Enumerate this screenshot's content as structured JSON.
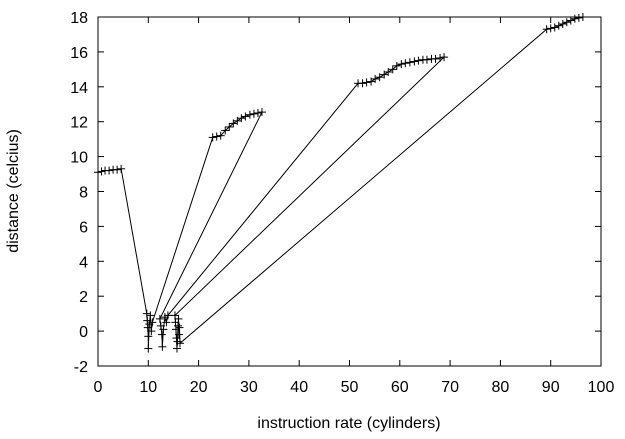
{
  "chart_data": {
    "type": "line",
    "title": "",
    "xlabel": "instruction rate (cylinders)",
    "ylabel": "distance (celcius)",
    "xlim": [
      0,
      100
    ],
    "ylim": [
      -2,
      18
    ],
    "x_ticks": [
      0,
      10,
      20,
      30,
      40,
      50,
      60,
      70,
      80,
      90,
      100
    ],
    "y_ticks": [
      -2,
      0,
      2,
      4,
      6,
      8,
      10,
      12,
      14,
      16,
      18
    ],
    "grid": false,
    "legend": "none",
    "marker": "plus",
    "color": "#000000",
    "series": [
      {
        "points": [
          [
            0.0,
            9.1
          ],
          [
            0.7,
            9.15
          ],
          [
            1.4,
            9.2
          ],
          [
            2.2,
            9.2
          ],
          [
            3.0,
            9.25
          ],
          [
            3.8,
            9.25
          ],
          [
            4.6,
            9.3
          ],
          [
            9.7,
            1.0
          ],
          [
            9.8,
            0.6
          ],
          [
            9.9,
            0.2
          ],
          [
            10.0,
            -0.3
          ],
          [
            10.0,
            -1.0
          ],
          [
            10.2,
            0.4
          ],
          [
            10.4,
            0.9
          ],
          [
            10.6,
            0.0
          ],
          [
            10.8,
            0.5
          ],
          [
            22.8,
            11.1
          ],
          [
            23.6,
            11.15
          ],
          [
            24.4,
            11.2
          ],
          [
            25.3,
            11.5
          ],
          [
            26.1,
            11.7
          ],
          [
            26.9,
            11.9
          ],
          [
            27.7,
            12.05
          ],
          [
            28.5,
            12.2
          ],
          [
            29.3,
            12.3
          ],
          [
            30.2,
            12.4
          ],
          [
            31.0,
            12.45
          ],
          [
            31.8,
            12.5
          ],
          [
            32.6,
            12.55
          ],
          [
            12.3,
            0.7
          ],
          [
            12.5,
            0.3
          ],
          [
            12.7,
            -0.2
          ],
          [
            12.8,
            -0.9
          ],
          [
            13.0,
            0.1
          ],
          [
            13.3,
            0.8
          ],
          [
            13.6,
            0.5
          ],
          [
            13.9,
            0.9
          ],
          [
            51.7,
            14.2
          ],
          [
            52.6,
            14.2
          ],
          [
            53.4,
            14.25
          ],
          [
            54.3,
            14.3
          ],
          [
            55.1,
            14.45
          ],
          [
            56.0,
            14.55
          ],
          [
            56.9,
            14.7
          ],
          [
            57.7,
            14.85
          ],
          [
            58.6,
            15.0
          ],
          [
            59.4,
            15.2
          ],
          [
            60.3,
            15.3
          ],
          [
            61.1,
            15.35
          ],
          [
            62.0,
            15.4
          ],
          [
            62.9,
            15.45
          ],
          [
            63.7,
            15.5
          ],
          [
            64.6,
            15.55
          ],
          [
            65.4,
            15.55
          ],
          [
            66.3,
            15.6
          ],
          [
            67.1,
            15.6
          ],
          [
            68.0,
            15.65
          ],
          [
            68.8,
            15.7
          ],
          [
            15.3,
            0.9
          ],
          [
            15.4,
            0.5
          ],
          [
            15.5,
            0.1
          ],
          [
            15.6,
            -0.4
          ],
          [
            15.7,
            -1.0
          ],
          [
            15.8,
            -0.6
          ],
          [
            15.9,
            0.3
          ],
          [
            16.0,
            0.7
          ],
          [
            16.1,
            -0.2
          ],
          [
            16.2,
            0.2
          ],
          [
            16.3,
            -0.7
          ],
          [
            89.2,
            17.3
          ],
          [
            90.0,
            17.35
          ],
          [
            90.8,
            17.4
          ],
          [
            91.6,
            17.5
          ],
          [
            92.4,
            17.6
          ],
          [
            93.2,
            17.7
          ],
          [
            94.0,
            17.8
          ],
          [
            94.8,
            17.9
          ],
          [
            95.6,
            17.95
          ],
          [
            96.4,
            18.0
          ]
        ]
      }
    ]
  }
}
